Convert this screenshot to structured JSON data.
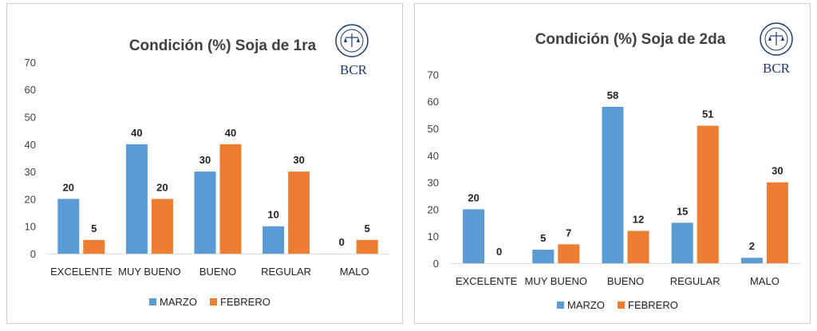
{
  "logo": {
    "text": "BCR",
    "color": "#1f3a6e"
  },
  "colors": {
    "marzo": "#5b9bd5",
    "febrero": "#ed7d31"
  },
  "chart_data": [
    {
      "type": "bar",
      "title": "Condición (%) Soja de 1ra",
      "categories": [
        "EXCELENTE",
        "MUY BUENO",
        "BUENO",
        "REGULAR",
        "MALO"
      ],
      "series": [
        {
          "name": "MARZO",
          "values": [
            20,
            40,
            30,
            10,
            0
          ]
        },
        {
          "name": "FEBRERO",
          "values": [
            5,
            20,
            40,
            30,
            5
          ]
        }
      ],
      "ylim": [
        0,
        70
      ],
      "yticks": [
        0,
        10,
        20,
        30,
        40,
        50,
        60,
        70
      ],
      "legend": "bottom",
      "grid": false
    },
    {
      "type": "bar",
      "title": "Condición (%)  Soja de 2da",
      "categories": [
        "EXCELENTE",
        "MUY BUENO",
        "BUENO",
        "REGULAR",
        "MALO"
      ],
      "series": [
        {
          "name": "MARZO",
          "values": [
            20,
            5,
            58,
            15,
            2
          ]
        },
        {
          "name": "FEBRERO",
          "values": [
            0,
            7,
            12,
            51,
            30
          ]
        }
      ],
      "ylim": [
        0,
        70
      ],
      "yticks": [
        0,
        10,
        20,
        30,
        40,
        50,
        60,
        70
      ],
      "legend": "bottom",
      "grid": false
    }
  ]
}
